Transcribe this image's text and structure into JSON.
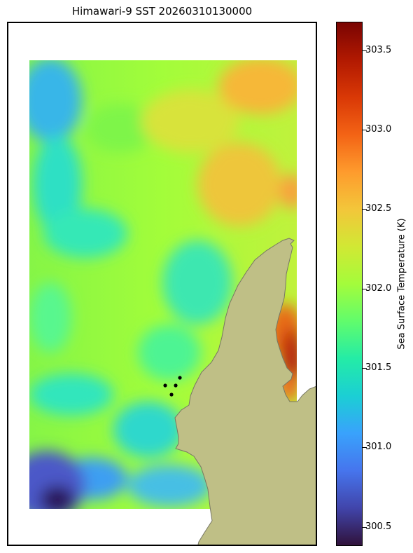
{
  "title": "Himawari-9 SST 20260310130000",
  "colorbar": {
    "label": "Sea Surface Temperature (K)",
    "min": 300.38,
    "max": 303.68,
    "ticks": [
      "300.5",
      "301.0",
      "301.5",
      "302.0",
      "302.5",
      "303.0",
      "303.5"
    ],
    "colormap": "turbo"
  },
  "map": {
    "land_color": "#bfbf86",
    "coast_color": "#777764",
    "data_extent_color_note": "gridded SST field with white no-data margins",
    "markers": {
      "count": 4,
      "color": "#000000"
    }
  }
}
